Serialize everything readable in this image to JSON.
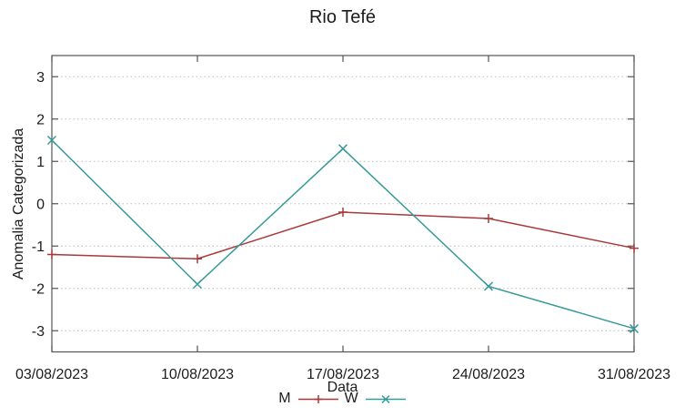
{
  "title": "Rio Tefé",
  "colors": {
    "background": "#ffffff",
    "border": "#555555",
    "grid": "#bdbdbd",
    "text": "#1c1c1c",
    "series_m": "#a93939",
    "series_w": "#379a9a"
  },
  "chart_data": {
    "type": "line",
    "title": "Rio Tefé",
    "xlabel": "Data",
    "ylabel": "Anomalia Categorizada",
    "categories": [
      "03/08/2023",
      "10/08/2023",
      "17/08/2023",
      "24/08/2023",
      "31/08/2023"
    ],
    "series": [
      {
        "name": "M",
        "marker": "plus",
        "color": "#a93939",
        "values": [
          -1.2,
          -1.3,
          -0.2,
          -0.35,
          -1.05
        ]
      },
      {
        "name": "W",
        "marker": "x",
        "color": "#379a9a",
        "values": [
          1.5,
          -1.9,
          1.3,
          -1.95,
          -2.95
        ]
      }
    ],
    "yticks": [
      -3,
      -2,
      -1,
      0,
      1,
      2,
      3
    ],
    "ylim": [
      -3.5,
      3.5
    ],
    "grid": "horizontal-dotted",
    "legend_position": "bottom-center"
  }
}
